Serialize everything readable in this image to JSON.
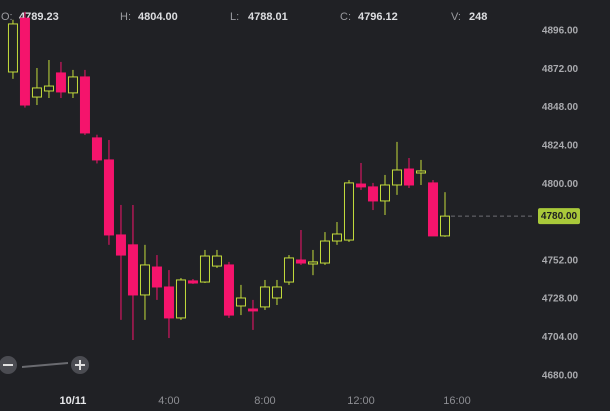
{
  "chart_data": {
    "type": "candlestick",
    "ohlcv_legend": [
      {
        "label": "O:",
        "value": "4789.23"
      },
      {
        "label": "H:",
        "value": "4804.00"
      },
      {
        "label": "L:",
        "value": "4788.01"
      },
      {
        "label": "C:",
        "value": "4796.12"
      },
      {
        "label": "V:",
        "value": "248"
      }
    ],
    "x": [
      -2.5,
      -2.0,
      -1.5,
      -1.0,
      -0.5,
      0.0,
      0.5,
      1.0,
      1.5,
      2.0,
      2.5,
      3.0,
      3.5,
      4.0,
      4.5,
      5.0,
      5.5,
      6.0,
      6.5,
      7.0,
      7.5,
      8.0,
      8.5,
      9.0,
      9.5,
      10.0,
      10.5,
      11.0,
      11.5,
      12.0,
      12.5,
      13.0,
      13.5,
      14.0,
      14.5,
      15.0,
      15.5
    ],
    "open": [
      4870.3,
      4904.0,
      4854.6,
      4858.4,
      4869.7,
      4857.2,
      4867.2,
      4829.0,
      4815.2,
      4768.2,
      4762.0,
      4730.6,
      4748.1,
      4735.6,
      4716.2,
      4739.4,
      4738.7,
      4748.7,
      4749.4,
      4723.7,
      4721.8,
      4723.1,
      4728.7,
      4738.7,
      4752.5,
      4750.0,
      4750.6,
      4764.4,
      4765.0,
      4800.1,
      4798.3,
      4789.5,
      4799.5,
      4809.5,
      4807.0,
      4800.8,
      4767.6
    ],
    "high": [
      4903.0,
      4908.0,
      4872.8,
      4877.8,
      4876.6,
      4871.6,
      4871.6,
      4831.0,
      4827.7,
      4787.0,
      4787.0,
      4762.0,
      4755.6,
      4746.2,
      4741.2,
      4740.6,
      4758.8,
      4758.8,
      4751.3,
      4736.9,
      4727.5,
      4740.0,
      4740.0,
      4755.6,
      4771.3,
      4758.8,
      4770.0,
      4776.3,
      4802.6,
      4813.3,
      4800.8,
      4805.8,
      4826.5,
      4816.4,
      4815.2,
      4802.6,
      4795.0
    ],
    "low": [
      4866.0,
      4848.0,
      4849.6,
      4854.0,
      4854.0,
      4854.0,
      4830.8,
      4813.0,
      4762.0,
      4715.0,
      4702.4,
      4715.0,
      4727.5,
      4703.6,
      4714.9,
      4737.5,
      4738.1,
      4747.5,
      4716.2,
      4718.0,
      4708.7,
      4721.2,
      4724.3,
      4736.9,
      4749.4,
      4743.0,
      4749.4,
      4762.0,
      4763.8,
      4796.4,
      4783.8,
      4780.7,
      4793.3,
      4797.6,
      4799.5,
      4767.6,
      4767.0
    ],
    "close": [
      4900.4,
      4849.6,
      4860.3,
      4861.5,
      4857.8,
      4867.2,
      4832.1,
      4815.2,
      4768.2,
      4755.6,
      4730.6,
      4749.4,
      4735.6,
      4716.2,
      4740.0,
      4738.1,
      4755.0,
      4755.0,
      4718.0,
      4728.7,
      4720.6,
      4735.6,
      4735.6,
      4753.8,
      4750.6,
      4751.3,
      4764.4,
      4768.8,
      4800.8,
      4798.3,
      4789.5,
      4799.5,
      4808.9,
      4799.5,
      4808.3,
      4767.6,
      4780.0
    ],
    "up_color": "#c3dc3c",
    "down_color": "#f5146c",
    "xlim": [
      -3.04,
      19.25
    ],
    "xticks": [
      {
        "value": 0,
        "label": "10/11"
      },
      {
        "value": 4,
        "label": "4:00"
      },
      {
        "value": 8,
        "label": "8:00"
      },
      {
        "value": 12,
        "label": "12:00"
      },
      {
        "value": 16,
        "label": "16:00"
      }
    ],
    "ylim": [
      4669.8,
      4915.4
    ],
    "yticks": [
      {
        "value": 4680,
        "label": "4680.00"
      },
      {
        "value": 4704,
        "label": "4704.00"
      },
      {
        "value": 4728,
        "label": "4728.00"
      },
      {
        "value": 4752,
        "label": "4752.00"
      },
      {
        "value": 4800,
        "label": "4800.00"
      },
      {
        "value": 4824,
        "label": "4824.00"
      },
      {
        "value": 4848,
        "label": "4848.00"
      },
      {
        "value": 4872,
        "label": "4872.00"
      },
      {
        "value": 4896,
        "label": "4896.00"
      }
    ],
    "last_price": {
      "value": 4780,
      "label": "4780.00"
    },
    "last_price_color": "#a9c93a",
    "grid": false
  }
}
